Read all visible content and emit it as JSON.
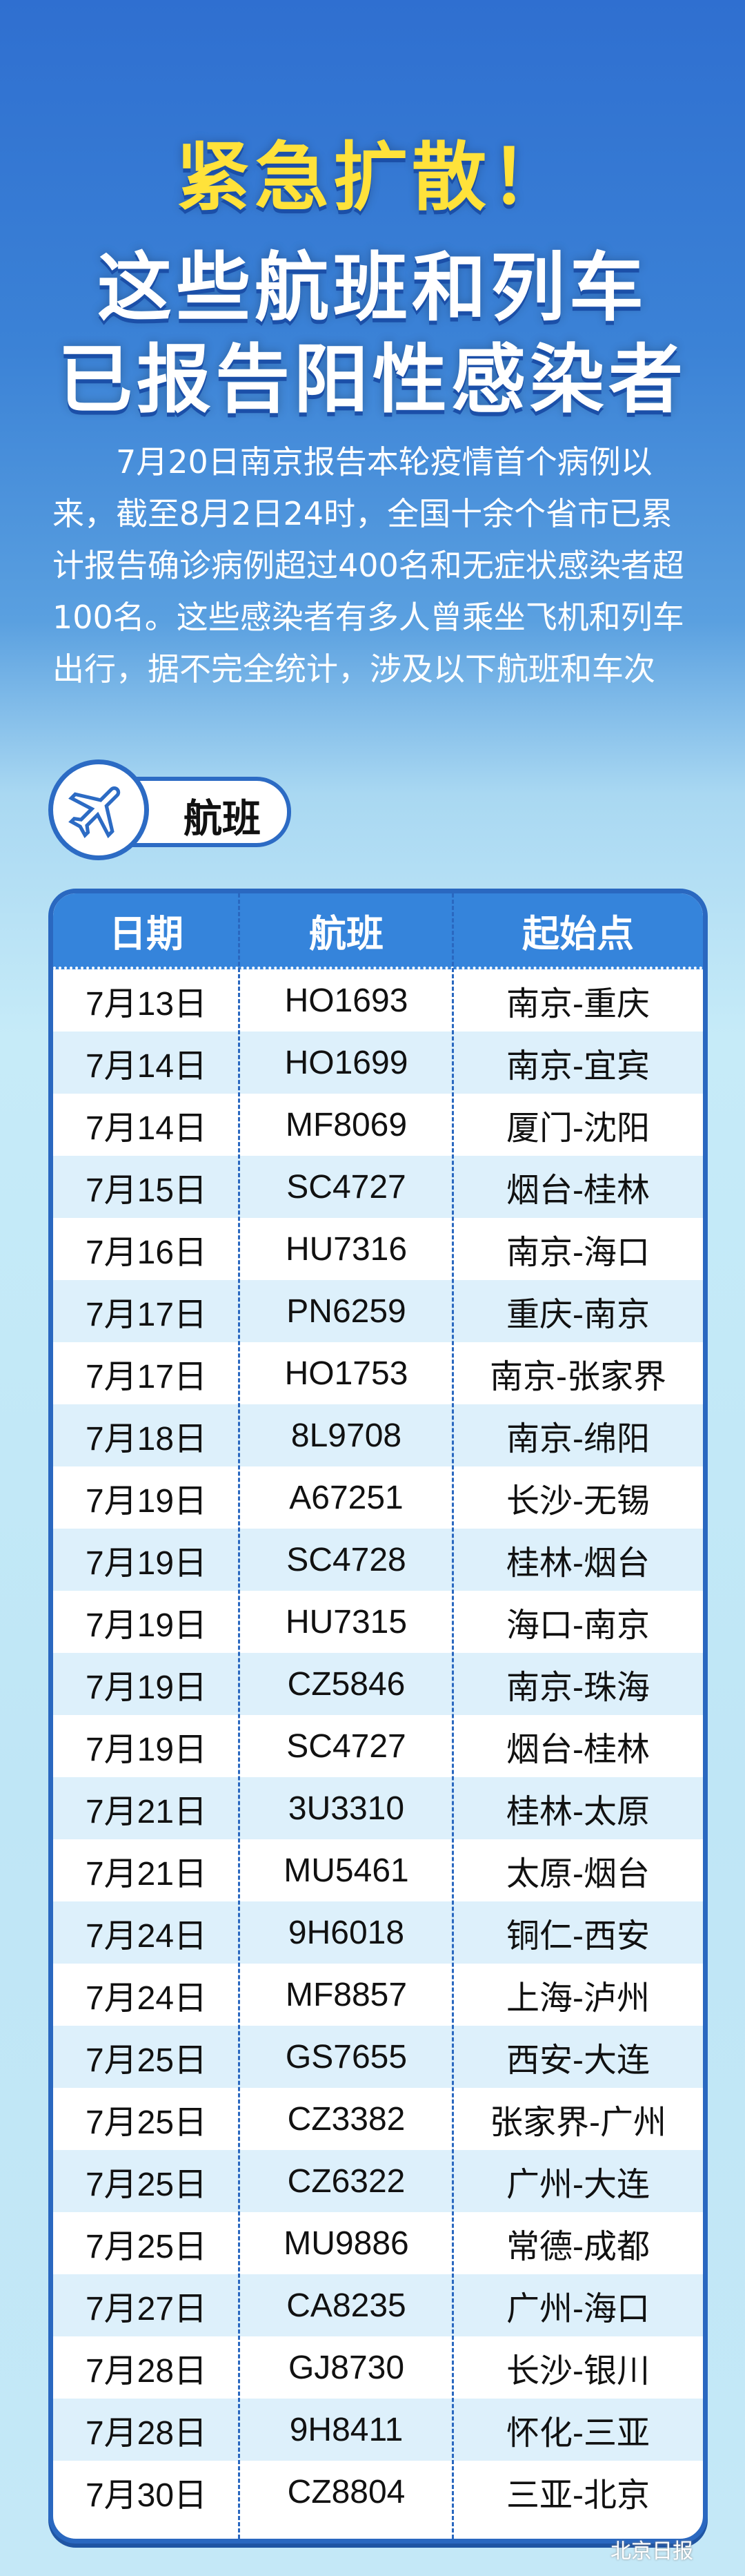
{
  "header": {
    "title_line1": "紧急扩散！",
    "title_line2": "这些航班和列车",
    "title_line3": "已报告阳性感染者"
  },
  "intro": "7月20日南京报告本轮疫情首个病例以来，截至8月2日24时，全国十余个省市已累计报告确诊病例超过400名和无症状感染者超100名。这些感染者有多人曾乘坐飞机和列车出行，据不完全统计，涉及以下航班和车次",
  "section": {
    "label": "航班",
    "icon": "airplane-icon"
  },
  "table": {
    "headers": [
      "日期",
      "航班",
      "起始点"
    ],
    "rows": [
      [
        "7月13日",
        "HO1693",
        "南京-重庆"
      ],
      [
        "7月14日",
        "HO1699",
        "南京-宜宾"
      ],
      [
        "7月14日",
        "MF8069",
        "厦门-沈阳"
      ],
      [
        "7月15日",
        "SC4727",
        "烟台-桂林"
      ],
      [
        "7月16日",
        "HU7316",
        "南京-海口"
      ],
      [
        "7月17日",
        "PN6259",
        "重庆-南京"
      ],
      [
        "7月17日",
        "HO1753",
        "南京-张家界"
      ],
      [
        "7月18日",
        "8L9708",
        "南京-绵阳"
      ],
      [
        "7月19日",
        "A67251",
        "长沙-无锡"
      ],
      [
        "7月19日",
        "SC4728",
        "桂林-烟台"
      ],
      [
        "7月19日",
        "HU7315",
        "海口-南京"
      ],
      [
        "7月19日",
        "CZ5846",
        "南京-珠海"
      ],
      [
        "7月19日",
        "SC4727",
        "烟台-桂林"
      ],
      [
        "7月21日",
        "3U3310",
        "桂林-太原"
      ],
      [
        "7月21日",
        "MU5461",
        "太原-烟台"
      ],
      [
        "7月24日",
        "9H6018",
        "铜仁-西安"
      ],
      [
        "7月24日",
        "MF8857",
        "上海-泸州"
      ],
      [
        "7月25日",
        "GS7655",
        "西安-大连"
      ],
      [
        "7月25日",
        "CZ3382",
        "张家界-广州"
      ],
      [
        "7月25日",
        "CZ6322",
        "广州-大连"
      ],
      [
        "7月25日",
        "MU9886",
        "常德-成都"
      ],
      [
        "7月27日",
        "CA8235",
        "广州-海口"
      ],
      [
        "7月28日",
        "GJ8730",
        "长沙-银川"
      ],
      [
        "7月28日",
        "9H8411",
        "怀化-三亚"
      ],
      [
        "7月30日",
        "CZ8804",
        "三亚-北京"
      ]
    ]
  },
  "watermark": "北京日报",
  "colors": {
    "accent": "#3584db",
    "title_yellow": "#ffe23a",
    "border": "#2a68c0"
  }
}
